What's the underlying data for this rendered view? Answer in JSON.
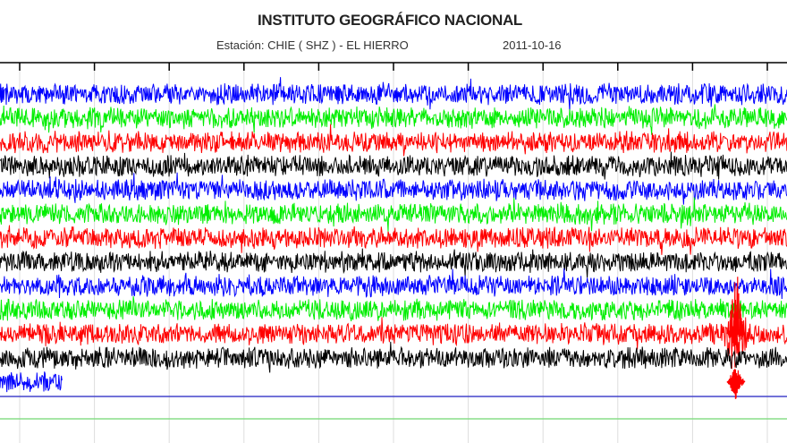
{
  "header": {
    "title": "INSTITUTO GEOGRÁFICO NACIONAL",
    "station": "Estación:  CHIE ( SHZ ) - EL HIERRO",
    "date": "2011-10-16"
  },
  "chart_data": {
    "type": "line",
    "subtype": "helicorder seismogram",
    "title": "INSTITUTO GEOGRÁFICO NACIONAL",
    "subtitle": "Estación:  CHIE ( SHZ ) - EL HIERRO   2011-10-16",
    "trace_color_cycle": [
      "#0000ff",
      "#00ee00",
      "#ff0000",
      "#000000"
    ],
    "rows_full": 12,
    "row_partial": 1,
    "x_ticks_count": 11,
    "grid": true,
    "events": [
      {
        "row": 11,
        "position_fraction": 0.935,
        "color": "#ff0000",
        "description_level": "large amplitude"
      },
      {
        "row": 13,
        "position_fraction": 0.935,
        "color": "#ff0000",
        "description_level": "large amplitude"
      }
    ],
    "baseline_colors": [
      "#4444cc",
      "#88dd88"
    ]
  }
}
